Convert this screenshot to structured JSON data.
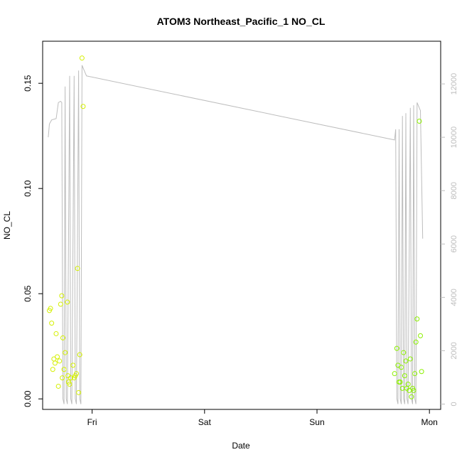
{
  "chart_data": {
    "type": "scatter",
    "title": "ATOM3 Northeast_Pacific_1 NO_CL",
    "xlabel": "Date",
    "ylabel": "NO_CL",
    "x_ticks": [
      "Fri",
      "Sat",
      "Sun",
      "Mon"
    ],
    "x_tick_positions_days": [
      1,
      2,
      3,
      4
    ],
    "xlim_days": [
      0.56,
      4.1
    ],
    "y_ticks": [
      "0.00",
      "0.05",
      "0.10",
      "0.15"
    ],
    "y_tick_values": [
      0,
      0.05,
      0.1,
      0.15
    ],
    "ylim": [
      -0.005,
      0.17
    ],
    "right_axis": {
      "ticks": [
        "0",
        "2000",
        "4000",
        "6000",
        "8000",
        "10000",
        "12000"
      ],
      "tick_values": [
        0,
        2000,
        4000,
        6000,
        8000,
        10000,
        12000
      ],
      "lim": [
        -200,
        13600
      ],
      "color": "#bdbdbd"
    },
    "grid": false,
    "colors": {
      "points_early": "#d4f000",
      "points_late": "#8cf000",
      "line": "#bdbdbd",
      "axis": "#000000"
    },
    "points": [
      {
        "x": 0.62,
        "y": 0.042
      },
      {
        "x": 0.63,
        "y": 0.043
      },
      {
        "x": 0.64,
        "y": 0.036
      },
      {
        "x": 0.65,
        "y": 0.014
      },
      {
        "x": 0.66,
        "y": 0.019
      },
      {
        "x": 0.67,
        "y": 0.017
      },
      {
        "x": 0.68,
        "y": 0.031
      },
      {
        "x": 0.69,
        "y": 0.02
      },
      {
        "x": 0.7,
        "y": 0.006
      },
      {
        "x": 0.71,
        "y": 0.018
      },
      {
        "x": 0.72,
        "y": 0.045
      },
      {
        "x": 0.73,
        "y": 0.049
      },
      {
        "x": 0.735,
        "y": 0.01
      },
      {
        "x": 0.74,
        "y": 0.029
      },
      {
        "x": 0.75,
        "y": 0.014
      },
      {
        "x": 0.76,
        "y": 0.022
      },
      {
        "x": 0.78,
        "y": 0.046
      },
      {
        "x": 0.785,
        "y": 0.011
      },
      {
        "x": 0.79,
        "y": 0.008
      },
      {
        "x": 0.8,
        "y": 0.007
      },
      {
        "x": 0.81,
        "y": 0.01
      },
      {
        "x": 0.83,
        "y": 0.016
      },
      {
        "x": 0.84,
        "y": 0.01
      },
      {
        "x": 0.85,
        "y": 0.011
      },
      {
        "x": 0.86,
        "y": 0.012
      },
      {
        "x": 0.87,
        "y": 0.062
      },
      {
        "x": 0.88,
        "y": 0.003
      },
      {
        "x": 0.89,
        "y": 0.021
      },
      {
        "x": 0.91,
        "y": 0.162
      },
      {
        "x": 0.92,
        "y": 0.139
      },
      {
        "x": 3.69,
        "y": 0.012
      },
      {
        "x": 3.71,
        "y": 0.024
      },
      {
        "x": 3.72,
        "y": 0.016
      },
      {
        "x": 3.73,
        "y": 0.008
      },
      {
        "x": 3.74,
        "y": 0.008
      },
      {
        "x": 3.75,
        "y": 0.015
      },
      {
        "x": 3.76,
        "y": 0.005
      },
      {
        "x": 3.77,
        "y": 0.022
      },
      {
        "x": 3.78,
        "y": 0.011
      },
      {
        "x": 3.79,
        "y": 0.018
      },
      {
        "x": 3.8,
        "y": 0.005
      },
      {
        "x": 3.81,
        "y": 0.007
      },
      {
        "x": 3.82,
        "y": 0.004
      },
      {
        "x": 3.83,
        "y": 0.019
      },
      {
        "x": 3.84,
        "y": 0.001
      },
      {
        "x": 3.85,
        "y": 0.005
      },
      {
        "x": 3.86,
        "y": 0.004
      },
      {
        "x": 3.87,
        "y": 0.012
      },
      {
        "x": 3.88,
        "y": 0.027
      },
      {
        "x": 3.89,
        "y": 0.038
      },
      {
        "x": 3.91,
        "y": 0.132
      },
      {
        "x": 3.92,
        "y": 0.03
      },
      {
        "x": 3.93,
        "y": 0.013
      }
    ],
    "line_series": {
      "axis": "right",
      "x": [
        0.61,
        0.62,
        0.64,
        0.68,
        0.7,
        0.72,
        0.73,
        0.74,
        0.75,
        0.76,
        0.77,
        0.78,
        0.8,
        0.81,
        0.82,
        0.84,
        0.85,
        0.86,
        0.88,
        0.89,
        0.9,
        0.91,
        0.92,
        0.93,
        0.95,
        3.69,
        3.7,
        3.71,
        3.72,
        3.73,
        3.74,
        3.75,
        3.76,
        3.77,
        3.78,
        3.79,
        3.8,
        3.81,
        3.83,
        3.84,
        3.85,
        3.86,
        3.87,
        3.88,
        3.89,
        3.92,
        3.94
      ],
      "y": [
        10000,
        10500,
        10650,
        10700,
        11300,
        11350,
        11300,
        200,
        0,
        11900,
        200,
        0,
        12300,
        200,
        0,
        12300,
        200,
        0,
        12500,
        200,
        0,
        12700,
        12600,
        12500,
        12300,
        9900,
        10300,
        200,
        0,
        10300,
        200,
        0,
        10800,
        200,
        0,
        10900,
        200,
        0,
        11100,
        200,
        0,
        11200,
        200,
        0,
        11300,
        11000,
        6200
      ]
    }
  }
}
